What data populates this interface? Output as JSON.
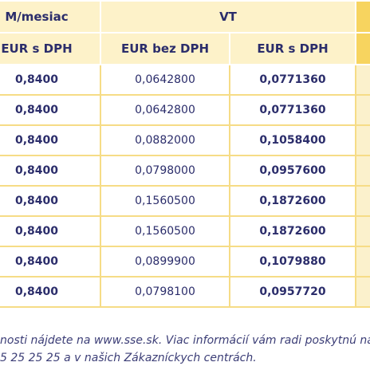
{
  "table": {
    "header_top": [
      "M/mesiac",
      "VT"
    ],
    "header_sub": [
      "EUR s DPH",
      "EUR bez DPH",
      "EUR s DPH"
    ],
    "rows": [
      [
        "0,8400",
        "0,0642800",
        "0,0771360"
      ],
      [
        "0,8400",
        "0,0642800",
        "0,0771360"
      ],
      [
        "0,8400",
        "0,0882000",
        "0,1058400"
      ],
      [
        "0,8400",
        "0,0798000",
        "0,0957600"
      ],
      [
        "0,8400",
        "0,1560500",
        "0,1872600"
      ],
      [
        "0,8400",
        "0,1560500",
        "0,1872600"
      ],
      [
        "0,8400",
        "0,0899900",
        "0,1079880"
      ],
      [
        "0,8400",
        "0,0798100",
        "0,0957720"
      ]
    ]
  },
  "footer": {
    "lines": [
      "nosti nájdete na www.sse.sk. Viac informácií vám radi poskytnú na",
      "5 25 25 25 a v našich Zákazníckych centrách."
    ]
  }
}
